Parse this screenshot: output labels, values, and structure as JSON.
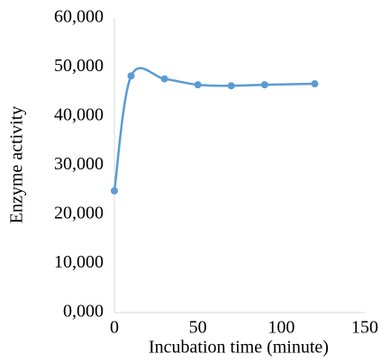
{
  "chart_data": {
    "type": "line",
    "smooth": true,
    "markers": true,
    "x_label": "Incubation time (minute)",
    "y_label": "Enzyme activity",
    "x": [
      0,
      10,
      30,
      50,
      70,
      90,
      120
    ],
    "series": [
      {
        "color": "#5b9bd5",
        "values": [
          24800,
          48200,
          47600,
          46400,
          46200,
          46400,
          46600
        ]
      }
    ],
    "xlim": [
      0,
      150
    ],
    "xticks": [
      0,
      50,
      100,
      150
    ],
    "ylim": [
      0,
      60000
    ],
    "yticks": [
      {
        "value": 0,
        "label": "0,000"
      },
      {
        "value": 10000,
        "label": "10,000"
      },
      {
        "value": 20000,
        "label": "20,000"
      },
      {
        "value": 30000,
        "label": "30,000"
      },
      {
        "value": 40000,
        "label": "40,000"
      },
      {
        "value": 50000,
        "label": "50,000"
      },
      {
        "value": 60000,
        "label": "60,000"
      }
    ],
    "grid": false
  }
}
